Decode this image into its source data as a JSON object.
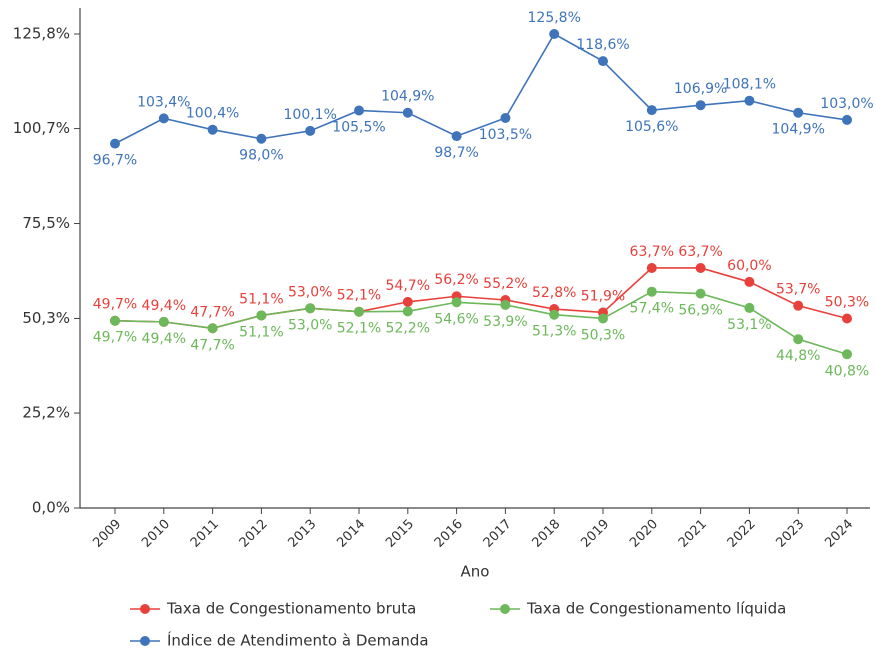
{
  "chart_data": {
    "type": "line",
    "x_label": "Ano",
    "categories": [
      "2009",
      "2010",
      "2011",
      "2012",
      "2013",
      "2014",
      "2015",
      "2016",
      "2017",
      "2018",
      "2019",
      "2020",
      "2021",
      "2022",
      "2023",
      "2024"
    ],
    "series": [
      {
        "name": "Taxa de Congestionamento bruta",
        "color": "#e8413b",
        "values": [
          49.7,
          49.4,
          47.7,
          51.1,
          53.0,
          52.1,
          54.7,
          56.2,
          55.2,
          52.8,
          51.9,
          63.7,
          63.7,
          60.0,
          53.7,
          50.3
        ],
        "value_labels": [
          "49,7%",
          "49,4%",
          "47,7%",
          "51,1%",
          "53,0%",
          "52,1%",
          "54,7%",
          "56,2%",
          "55,2%",
          "52,8%",
          "51,9%",
          "63,7%",
          "63,7%",
          "60,0%",
          "53,7%",
          "50,3%"
        ]
      },
      {
        "name": "Taxa de Congestionamento líquida",
        "color": "#6cb85a",
        "values": [
          49.7,
          49.4,
          47.7,
          51.1,
          53.0,
          52.1,
          52.2,
          54.6,
          53.9,
          51.3,
          50.3,
          57.4,
          56.9,
          53.1,
          44.8,
          40.8
        ],
        "value_labels": [
          "49,7%",
          "49,4%",
          "47,7%",
          "51,1%",
          "53,0%",
          "52,1%",
          "52,2%",
          "54,6%",
          "53,9%",
          "51,3%",
          "50,3%",
          "57,4%",
          "56,9%",
          "53,1%",
          "44,8%",
          "40,8%"
        ]
      },
      {
        "name": "Índice de Atendimento à Demanda",
        "color": "#3f74ba",
        "values": [
          96.7,
          103.4,
          100.4,
          98.0,
          100.1,
          105.5,
          104.9,
          98.7,
          103.5,
          125.8,
          118.6,
          105.6,
          106.9,
          108.1,
          104.9,
          103.0
        ],
        "value_labels": [
          "96,7%",
          "103,4%",
          "100,4%",
          "98,0%",
          "100,1%",
          "105,5%",
          "104,9%",
          "98,7%",
          "103,5%",
          "125,8%",
          "118,6%",
          "105,6%",
          "106,9%",
          "108,1%",
          "104,9%",
          "103,0%"
        ]
      }
    ],
    "ylim": [
      0,
      132.7
    ],
    "yticks": [
      {
        "value": 0,
        "label": "0,0%"
      },
      {
        "value": 25.2,
        "label": "25,2%"
      },
      {
        "value": 50.3,
        "label": "50,3%"
      },
      {
        "value": 75.5,
        "label": "75,5%"
      },
      {
        "value": 100.7,
        "label": "100,7%"
      },
      {
        "value": 125.8,
        "label": "125,8%"
      }
    ],
    "grid": false,
    "legend": "bottom"
  }
}
